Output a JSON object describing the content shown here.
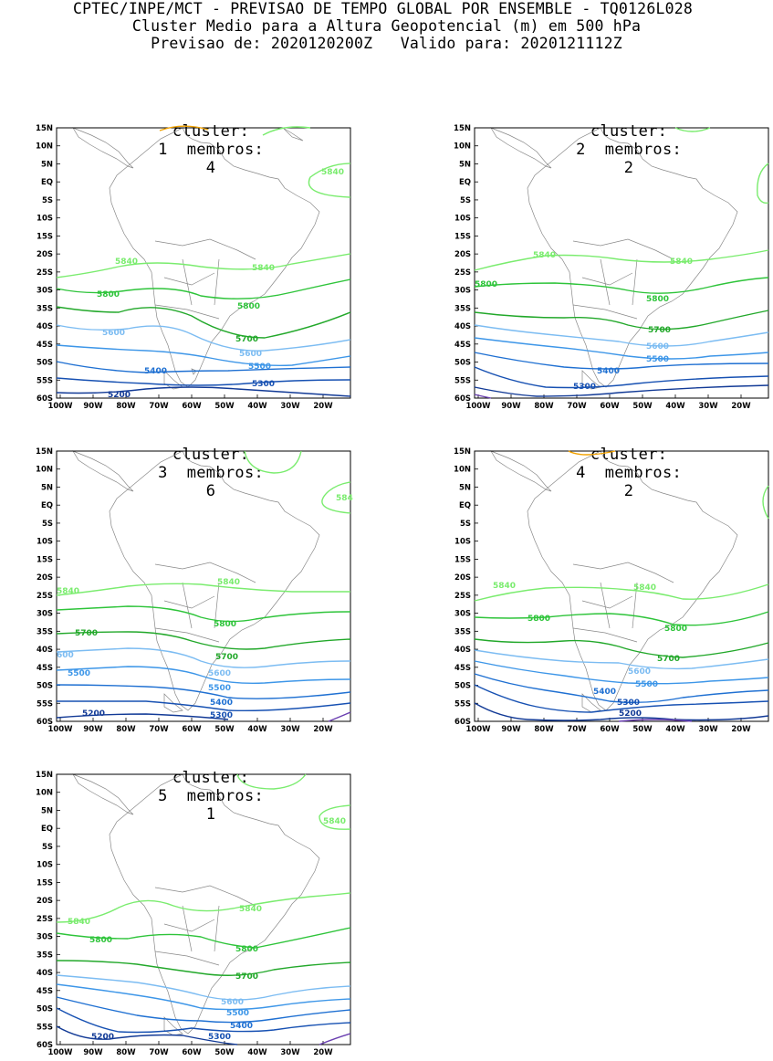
{
  "header": {
    "line1": "CPTEC/INPE/MCT - PREVISAO DE TEMPO GLOBAL POR ENSEMBLE - TQ0126L028",
    "line2": "Cluster Medio para a Altura Geopotencial (m) em 500 hPa",
    "line3": "Previsao de: 2020120200Z   Valido para: 2020121112Z"
  },
  "axes": {
    "lat_labels": [
      "15N",
      "10N",
      "5N",
      "EQ",
      "5S",
      "10S",
      "15S",
      "20S",
      "25S",
      "30S",
      "35S",
      "40S",
      "45S",
      "50S",
      "55S",
      "60S"
    ],
    "lon_labels": [
      "100W",
      "90W",
      "80W",
      "70W",
      "60W",
      "50W",
      "40W",
      "30W",
      "20W"
    ]
  },
  "contour_colors": {
    "5880": "#f2a200",
    "5840": "#7aec6e",
    "5800": "#2ec43a",
    "5700": "#22a82a",
    "5600": "#7cbcf2",
    "5500": "#3d96e8",
    "5400": "#1f70d2",
    "5300": "#1650b2",
    "5200": "#123a96",
    "5100": "#6a3fb0",
    "map": "#888888"
  },
  "clusters": [
    {
      "title_cluster": "cluster:",
      "cluster_no": "1",
      "title_members": "membros:",
      "members_no": "4",
      "labels": [
        "5840",
        "5840",
        "5840",
        "5800",
        "5800",
        "5600",
        "5700",
        "5600",
        "5500",
        "5400",
        "5300",
        "5200"
      ]
    },
    {
      "title_cluster": "cluster:",
      "cluster_no": "2",
      "title_members": "membros:",
      "members_no": "2",
      "labels": [
        "5840",
        "5840",
        "5800",
        "5800",
        "5700",
        "5600",
        "5500",
        "5400",
        "5300"
      ]
    },
    {
      "title_cluster": "cluster:",
      "cluster_no": "3",
      "title_members": "membros:",
      "members_no": "6",
      "labels": [
        "584",
        "5840",
        "5840",
        "5800",
        "5700",
        "5700",
        "600",
        "5600",
        "5500",
        "5500",
        "5400",
        "5300",
        "5200"
      ]
    },
    {
      "title_cluster": "cluster:",
      "cluster_no": "4",
      "title_members": "membros:",
      "members_no": "2",
      "labels": [
        "5840",
        "5840",
        "5800",
        "5800",
        "5700",
        "5600",
        "5500",
        "5400",
        "5300",
        "5200"
      ]
    },
    {
      "title_cluster": "cluster:",
      "cluster_no": "5",
      "title_members": "membros:",
      "members_no": "1",
      "labels": [
        "5840",
        "5840",
        "5840",
        "5800",
        "5800",
        "5700",
        "5600",
        "5500",
        "5400",
        "5300",
        "5200"
      ]
    }
  ]
}
